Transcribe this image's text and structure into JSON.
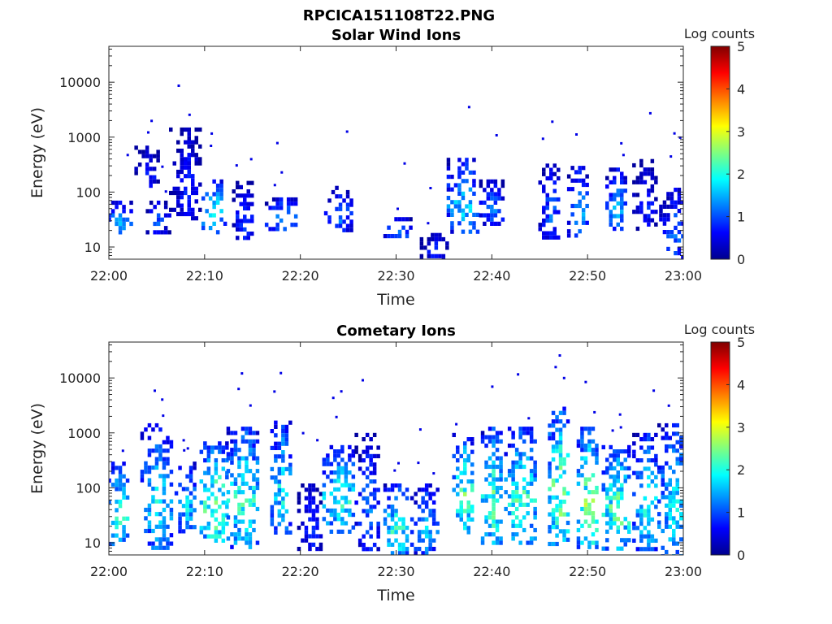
{
  "figure": {
    "title": "RPCICA151108T22.PNG"
  },
  "chart_data": [
    {
      "type": "heatmap",
      "title": "Solar Wind Ions",
      "xlabel": "Time",
      "ylabel": "Energy (eV)",
      "x_tick_labels": [
        "22:00",
        "22:10",
        "22:20",
        "22:30",
        "22:40",
        "22:50",
        "23:00"
      ],
      "y_tick_labels": [
        "10",
        "100",
        "1000",
        "10000"
      ],
      "y_scale": "log",
      "xlim": [
        "22:00",
        "23:00"
      ],
      "ylim": [
        6,
        45000
      ],
      "colorbar": {
        "label": "Log counts",
        "range": [
          0,
          5
        ],
        "ticks": [
          "0",
          "1",
          "2",
          "3",
          "4",
          "5"
        ],
        "colormap": "jet"
      },
      "bursts": [
        {
          "time": "22:01",
          "emin": 18,
          "emax": 70,
          "intensity": 1.6
        },
        {
          "time": "22:04",
          "emin": 120,
          "emax": 700,
          "intensity": 0.9
        },
        {
          "time": "22:05",
          "emin": 20,
          "emax": 70,
          "intensity": 1.1
        },
        {
          "time": "22:08",
          "emin": 35,
          "emax": 1500,
          "intensity": 0.9
        },
        {
          "time": "22:11",
          "emin": 20,
          "emax": 170,
          "intensity": 2.0
        },
        {
          "time": "22:14",
          "emin": 15,
          "emax": 160,
          "intensity": 1.1
        },
        {
          "time": "22:18",
          "emin": 20,
          "emax": 80,
          "intensity": 1.6
        },
        {
          "time": "22:24",
          "emin": 20,
          "emax": 130,
          "intensity": 1.3
        },
        {
          "time": "22:30",
          "emin": 15,
          "emax": 35,
          "intensity": 1.4
        },
        {
          "time": "22:34",
          "emin": 6,
          "emax": 18,
          "intensity": 0.9
        },
        {
          "time": "22:37",
          "emin": 20,
          "emax": 420,
          "intensity": 1.8
        },
        {
          "time": "22:40",
          "emin": 25,
          "emax": 170,
          "intensity": 1.3
        },
        {
          "time": "22:46",
          "emin": 15,
          "emax": 330,
          "intensity": 1.2
        },
        {
          "time": "22:49",
          "emin": 15,
          "emax": 300,
          "intensity": 1.6
        },
        {
          "time": "22:53",
          "emin": 20,
          "emax": 280,
          "intensity": 1.6
        },
        {
          "time": "22:56",
          "emin": 20,
          "emax": 400,
          "intensity": 0.9
        },
        {
          "time": "22:59",
          "emin": 6,
          "emax": 120,
          "intensity": 1.2
        }
      ]
    },
    {
      "type": "heatmap",
      "title": "Cometary Ions",
      "xlabel": "Time",
      "ylabel": "Energy (eV)",
      "x_tick_labels": [
        "22:00",
        "22:10",
        "22:20",
        "22:30",
        "22:40",
        "22:50",
        "23:00"
      ],
      "y_tick_labels": [
        "10",
        "100",
        "1000",
        "10000"
      ],
      "y_scale": "log",
      "xlim": [
        "22:00",
        "23:00"
      ],
      "ylim": [
        6,
        45000
      ],
      "colorbar": {
        "label": "Log counts",
        "range": [
          0,
          5
        ],
        "ticks": [
          "0",
          "1",
          "2",
          "3",
          "4",
          "5"
        ],
        "colormap": "jet"
      },
      "bursts": [
        {
          "time": "22:01",
          "emin": 10,
          "emax": 300,
          "intensity": 2.2
        },
        {
          "time": "22:05",
          "emin": 8,
          "emax": 1500,
          "intensity": 1.9
        },
        {
          "time": "22:08",
          "emin": 15,
          "emax": 300,
          "intensity": 1.8
        },
        {
          "time": "22:11",
          "emin": 10,
          "emax": 700,
          "intensity": 2.6
        },
        {
          "time": "22:14",
          "emin": 8,
          "emax": 1300,
          "intensity": 2.3
        },
        {
          "time": "22:18",
          "emin": 15,
          "emax": 2000,
          "intensity": 2.0
        },
        {
          "time": "22:21",
          "emin": 8,
          "emax": 120,
          "intensity": 1.0
        },
        {
          "time": "22:24",
          "emin": 15,
          "emax": 600,
          "intensity": 2.2
        },
        {
          "time": "22:27",
          "emin": 8,
          "emax": 1000,
          "intensity": 1.3
        },
        {
          "time": "22:30",
          "emin": 6,
          "emax": 120,
          "intensity": 2.2
        },
        {
          "time": "22:33",
          "emin": 6,
          "emax": 120,
          "intensity": 1.6
        },
        {
          "time": "22:37",
          "emin": 15,
          "emax": 1000,
          "intensity": 2.4
        },
        {
          "time": "22:40",
          "emin": 10,
          "emax": 1300,
          "intensity": 2.4
        },
        {
          "time": "22:43",
          "emin": 10,
          "emax": 1300,
          "intensity": 2.3
        },
        {
          "time": "22:47",
          "emin": 10,
          "emax": 3000,
          "intensity": 2.6
        },
        {
          "time": "22:50",
          "emin": 8,
          "emax": 1300,
          "intensity": 2.7
        },
        {
          "time": "22:53",
          "emin": 8,
          "emax": 600,
          "intensity": 2.5
        },
        {
          "time": "22:56",
          "emin": 8,
          "emax": 1000,
          "intensity": 2.1
        },
        {
          "time": "22:59",
          "emin": 6,
          "emax": 1500,
          "intensity": 2.0
        }
      ]
    }
  ]
}
